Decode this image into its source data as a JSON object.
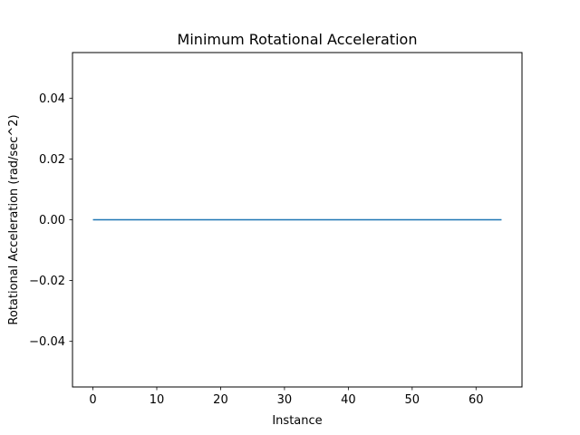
{
  "chart_data": {
    "type": "line",
    "title": "Minimum Rotational Acceleration",
    "xlabel": "Instance",
    "ylabel": "Rotational Acceleration (rad/sec^2)",
    "xlim": [
      -3.2,
      67.2
    ],
    "ylim": [
      -0.055,
      0.055
    ],
    "x_ticks": [
      0,
      10,
      20,
      30,
      40,
      50,
      60
    ],
    "x_tick_labels": [
      "0",
      "10",
      "20",
      "30",
      "40",
      "50",
      "60"
    ],
    "y_ticks": [
      -0.04,
      -0.02,
      0.0,
      0.02,
      0.04
    ],
    "y_tick_labels": [
      "−0.04",
      "−0.02",
      "0.00",
      "0.02",
      "0.04"
    ],
    "grid": false,
    "series": [
      {
        "color": "#1f77b4",
        "x": [
          0,
          64
        ],
        "y": [
          0,
          0
        ]
      }
    ]
  }
}
